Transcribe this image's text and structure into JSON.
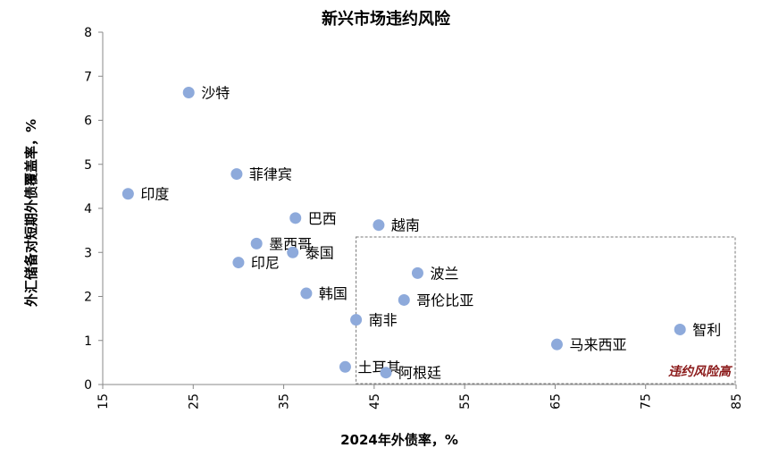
{
  "chart_data": {
    "type": "scatter",
    "title": "新兴市场违约风险",
    "xlabel": "2024年外债率，%",
    "ylabel": "外汇储备对短期外债覆盖率，%",
    "xlim": [
      15,
      85
    ],
    "ylim": [
      0,
      8
    ],
    "xticks": [
      15,
      25,
      35,
      45,
      55,
      65,
      75,
      85
    ],
    "yticks": [
      0,
      1,
      2,
      3,
      4,
      5,
      6,
      7,
      8
    ],
    "grid": false,
    "legend": "none",
    "point_color": "#8eaadb",
    "annotation": {
      "text": "违约风险高",
      "color": "#8b1a1a",
      "region": {
        "x": [
          43,
          85
        ],
        "y": [
          0,
          3.35
        ]
      }
    },
    "points": [
      {
        "label": "沙特",
        "x": 24.5,
        "y": 6.63
      },
      {
        "label": "菲律宾",
        "x": 29.8,
        "y": 4.78
      },
      {
        "label": "印度",
        "x": 17.8,
        "y": 4.33
      },
      {
        "label": "巴西",
        "x": 36.3,
        "y": 3.78
      },
      {
        "label": "越南",
        "x": 45.5,
        "y": 3.62
      },
      {
        "label": "墨西哥",
        "x": 32.0,
        "y": 3.2
      },
      {
        "label": "泰国",
        "x": 36.0,
        "y": 3.0
      },
      {
        "label": "印尼",
        "x": 30.0,
        "y": 2.77
      },
      {
        "label": "波兰",
        "x": 49.8,
        "y": 2.53
      },
      {
        "label": "韩国",
        "x": 37.5,
        "y": 2.07
      },
      {
        "label": "哥伦比亚",
        "x": 48.3,
        "y": 1.92
      },
      {
        "label": "南非",
        "x": 43.0,
        "y": 1.47
      },
      {
        "label": "智利",
        "x": 78.8,
        "y": 1.25
      },
      {
        "label": "马来西亚",
        "x": 65.2,
        "y": 0.91
      },
      {
        "label": "土耳其",
        "x": 41.8,
        "y": 0.4
      },
      {
        "label": "阿根廷",
        "x": 46.3,
        "y": 0.27
      }
    ]
  }
}
